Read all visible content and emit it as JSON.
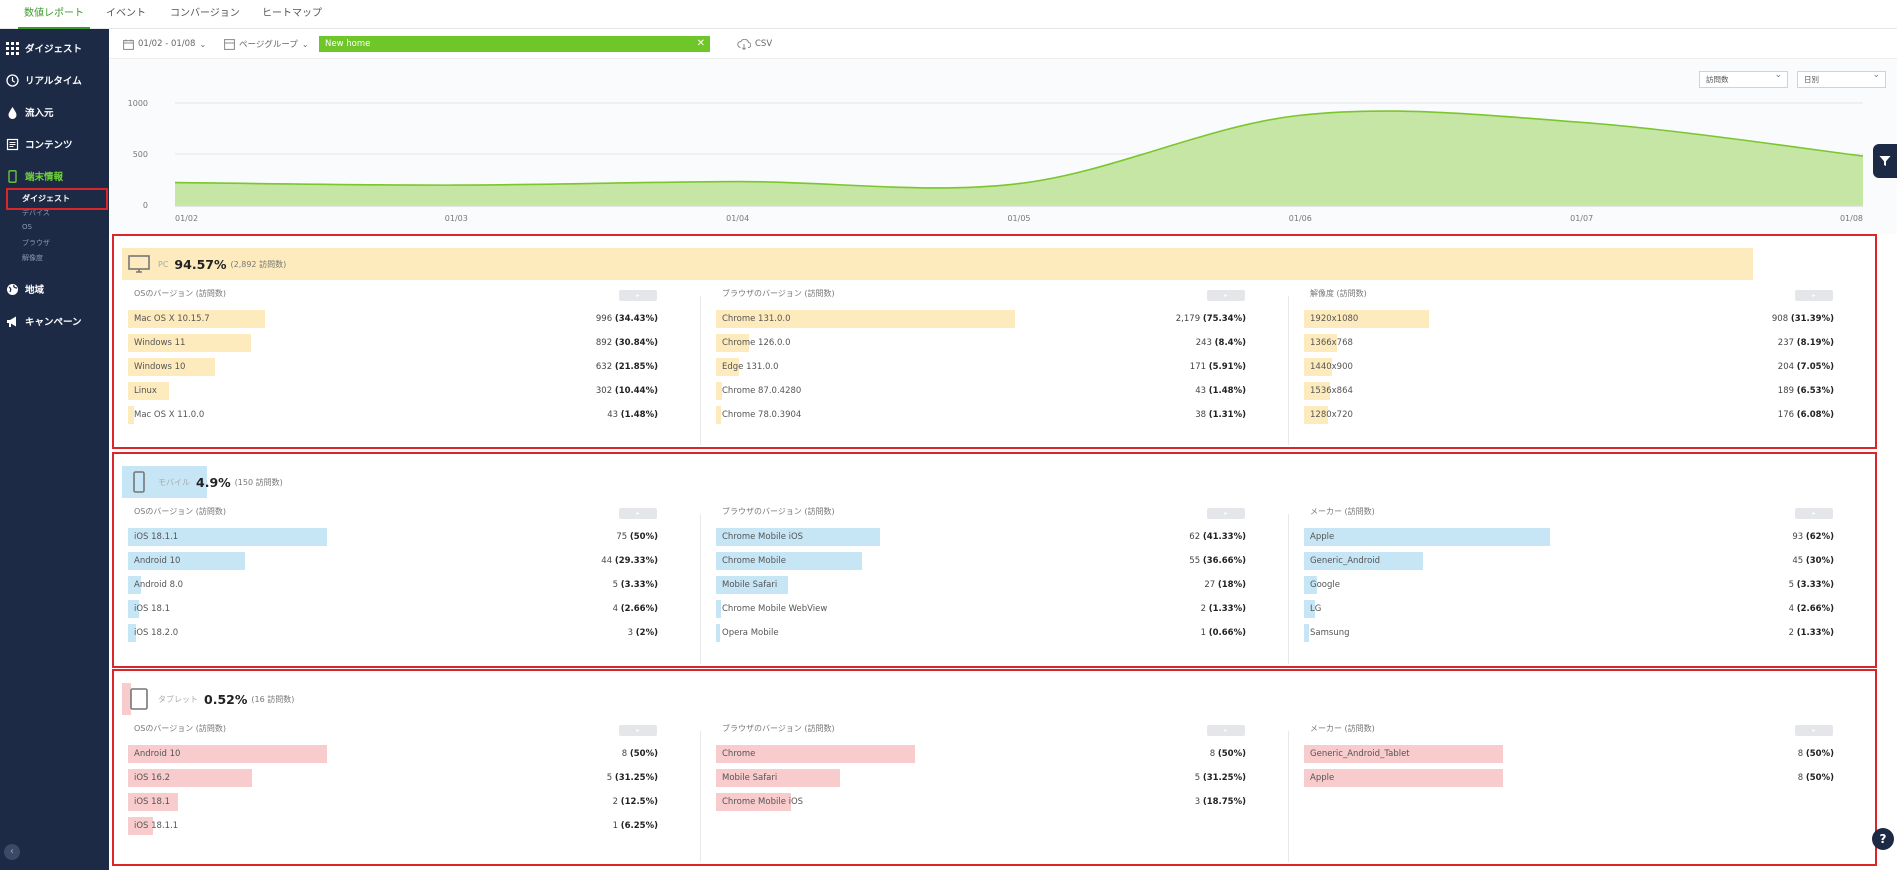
{
  "topnav": {
    "tabs": [
      "数値レポート",
      "イベント",
      "コンバージョン",
      "ヒートマップ"
    ]
  },
  "sidebar": {
    "items": [
      {
        "label": "ダイジェスト",
        "icon": "grid-icon"
      },
      {
        "label": "リアルタイム",
        "icon": "clock-icon"
      },
      {
        "label": "流入元",
        "icon": "drop-icon"
      },
      {
        "label": "コンテンツ",
        "icon": "page-icon"
      },
      {
        "label": "端末情報",
        "icon": "mobile-icon"
      },
      {
        "label": "地域",
        "icon": "globe-icon"
      },
      {
        "label": "キャンペーン",
        "icon": "megaphone-icon"
      }
    ],
    "subitems": [
      "ダイジェスト",
      "デバイス",
      "OS",
      "ブラウザ",
      "解像度"
    ]
  },
  "toolbar": {
    "date_range": "01/02 - 01/08",
    "page_group": "ページグループ",
    "filter_chip": "New home",
    "csv": "CSV"
  },
  "chart_controls": {
    "metric_select": "訪問数",
    "period_select": "日別"
  },
  "chart_data": {
    "type": "area",
    "x": [
      "01/02",
      "01/03",
      "01/04",
      "01/05",
      "01/06",
      "01/07",
      "01/08"
    ],
    "values": [
      220,
      195,
      230,
      210,
      880,
      810,
      480
    ],
    "ylim": [
      0,
      1000
    ],
    "yticks": [
      "1000",
      "500",
      "0"
    ],
    "grid": true,
    "color": "#7bc62d",
    "fill": "#c5e6a4"
  },
  "sections": [
    {
      "device": "PC",
      "icon": "desktop-icon",
      "pct": "94.57%",
      "count": "(2,892 訪問数)",
      "share": 0.9457,
      "color": "#fdebbd",
      "columns": [
        {
          "title": "OSのバージョン (訪問数)",
          "rows": [
            {
              "label": "Mac OS X 10.15.7",
              "count": "996",
              "pct": "(34.43%)",
              "share": 0.3443
            },
            {
              "label": "Windows 11",
              "count": "892",
              "pct": "(30.84%)",
              "share": 0.3084
            },
            {
              "label": "Windows 10",
              "count": "632",
              "pct": "(21.85%)",
              "share": 0.2185
            },
            {
              "label": "Linux",
              "count": "302",
              "pct": "(10.44%)",
              "share": 0.1044
            },
            {
              "label": "Mac OS X 11.0.0",
              "count": "43",
              "pct": "(1.48%)",
              "share": 0.0148
            }
          ]
        },
        {
          "title": "ブラウザのバージョン (訪問数)",
          "rows": [
            {
              "label": "Chrome 131.0.0",
              "count": "2,179",
              "pct": "(75.34%)",
              "share": 0.7534
            },
            {
              "label": "Chrome 126.0.0",
              "count": "243",
              "pct": "(8.4%)",
              "share": 0.084
            },
            {
              "label": "Edge 131.0.0",
              "count": "171",
              "pct": "(5.91%)",
              "share": 0.0591
            },
            {
              "label": "Chrome 87.0.4280",
              "count": "43",
              "pct": "(1.48%)",
              "share": 0.0148
            },
            {
              "label": "Chrome 78.0.3904",
              "count": "38",
              "pct": "(1.31%)",
              "share": 0.0131
            }
          ]
        },
        {
          "title": "解像度 (訪問数)",
          "rows": [
            {
              "label": "1920x1080",
              "count": "908",
              "pct": "(31.39%)",
              "share": 0.3139
            },
            {
              "label": "1366x768",
              "count": "237",
              "pct": "(8.19%)",
              "share": 0.0819
            },
            {
              "label": "1440x900",
              "count": "204",
              "pct": "(7.05%)",
              "share": 0.0705
            },
            {
              "label": "1536x864",
              "count": "189",
              "pct": "(6.53%)",
              "share": 0.0653
            },
            {
              "label": "1280x720",
              "count": "176",
              "pct": "(6.08%)",
              "share": 0.0608
            }
          ]
        }
      ]
    },
    {
      "device": "モバイル",
      "icon": "mobile-icon",
      "pct": "4.9%",
      "count": "(150 訪問数)",
      "share": 0.049,
      "color": "#c6e6f6",
      "columns": [
        {
          "title": "OSのバージョン (訪問数)",
          "rows": [
            {
              "label": "iOS 18.1.1",
              "count": "75",
              "pct": "(50%)",
              "share": 0.5
            },
            {
              "label": "Android 10",
              "count": "44",
              "pct": "(29.33%)",
              "share": 0.2933
            },
            {
              "label": "Android 8.0",
              "count": "5",
              "pct": "(3.33%)",
              "share": 0.0333
            },
            {
              "label": "iOS 18.1",
              "count": "4",
              "pct": "(2.66%)",
              "share": 0.0266
            },
            {
              "label": "iOS 18.2.0",
              "count": "3",
              "pct": "(2%)",
              "share": 0.02
            }
          ]
        },
        {
          "title": "ブラウザのバージョン (訪問数)",
          "rows": [
            {
              "label": "Chrome Mobile iOS",
              "count": "62",
              "pct": "(41.33%)",
              "share": 0.4133
            },
            {
              "label": "Chrome Mobile",
              "count": "55",
              "pct": "(36.66%)",
              "share": 0.3666
            },
            {
              "label": "Mobile Safari",
              "count": "27",
              "pct": "(18%)",
              "share": 0.18
            },
            {
              "label": "Chrome Mobile WebView",
              "count": "2",
              "pct": "(1.33%)",
              "share": 0.0133
            },
            {
              "label": "Opera Mobile",
              "count": "1",
              "pct": "(0.66%)",
              "share": 0.0066
            }
          ]
        },
        {
          "title": "メーカー (訪問数)",
          "rows": [
            {
              "label": "Apple",
              "count": "93",
              "pct": "(62%)",
              "share": 0.62
            },
            {
              "label": "Generic_Android",
              "count": "45",
              "pct": "(30%)",
              "share": 0.3
            },
            {
              "label": "Google",
              "count": "5",
              "pct": "(3.33%)",
              "share": 0.0333
            },
            {
              "label": "LG",
              "count": "4",
              "pct": "(2.66%)",
              "share": 0.0266
            },
            {
              "label": "Samsung",
              "count": "2",
              "pct": "(1.33%)",
              "share": 0.0133
            }
          ]
        }
      ]
    },
    {
      "device": "タブレット",
      "icon": "tablet-icon",
      "pct": "0.52%",
      "count": "(16 訪問数)",
      "share": 0.0052,
      "color": "#f8cbcd",
      "columns": [
        {
          "title": "OSのバージョン (訪問数)",
          "rows": [
            {
              "label": "Android 10",
              "count": "8",
              "pct": "(50%)",
              "share": 0.5
            },
            {
              "label": "iOS 16.2",
              "count": "5",
              "pct": "(31.25%)",
              "share": 0.3125
            },
            {
              "label": "iOS 18.1",
              "count": "2",
              "pct": "(12.5%)",
              "share": 0.125
            },
            {
              "label": "iOS 18.1.1",
              "count": "1",
              "pct": "(6.25%)",
              "share": 0.0625
            }
          ]
        },
        {
          "title": "ブラウザのバージョン (訪問数)",
          "rows": [
            {
              "label": "Chrome",
              "count": "8",
              "pct": "(50%)",
              "share": 0.5
            },
            {
              "label": "Mobile Safari",
              "count": "5",
              "pct": "(31.25%)",
              "share": 0.3125
            },
            {
              "label": "Chrome Mobile iOS",
              "count": "3",
              "pct": "(18.75%)",
              "share": 0.1875
            }
          ]
        },
        {
          "title": "メーカー (訪問数)",
          "rows": [
            {
              "label": "Generic_Android_Tablet",
              "count": "8",
              "pct": "(50%)",
              "share": 0.5
            },
            {
              "label": "Apple",
              "count": "8",
              "pct": "(50%)",
              "share": 0.5
            }
          ]
        }
      ]
    }
  ]
}
